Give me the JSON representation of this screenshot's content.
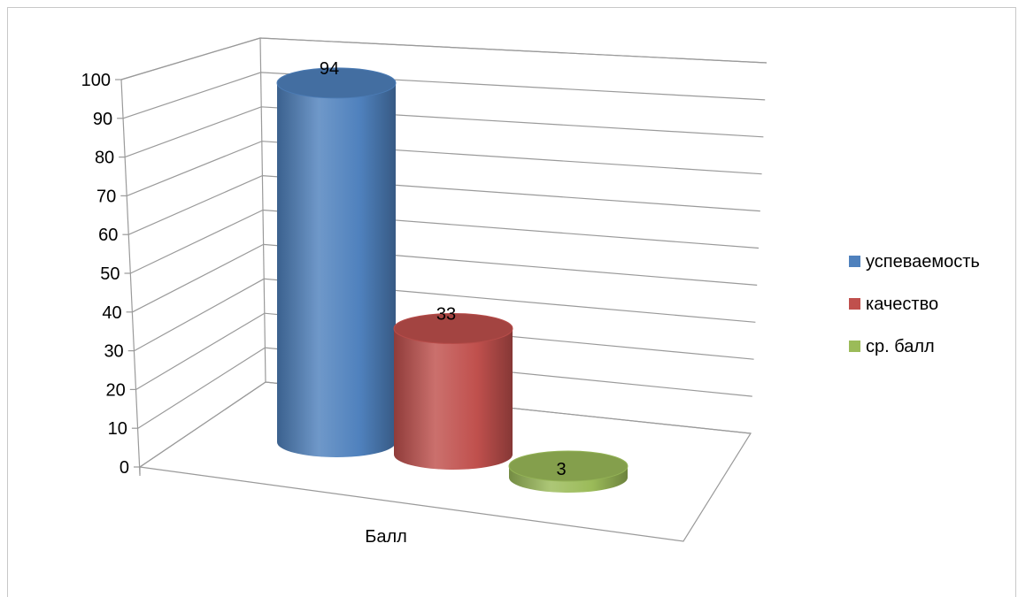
{
  "chart_data": {
    "type": "bar",
    "style": "3d-cylinder",
    "categories": [
      "Балл"
    ],
    "series": [
      {
        "name": "успеваемость",
        "values": [
          94
        ],
        "color": "#4f81bd"
      },
      {
        "name": "качество",
        "values": [
          33
        ],
        "color": "#c0504d"
      },
      {
        "name": "ср. балл",
        "values": [
          3
        ],
        "color": "#9bbb59"
      }
    ],
    "ylim": [
      0,
      100
    ],
    "yticks": [
      0,
      10,
      20,
      30,
      40,
      50,
      60,
      70,
      80,
      90,
      100
    ],
    "grid": true,
    "legend": "right"
  }
}
